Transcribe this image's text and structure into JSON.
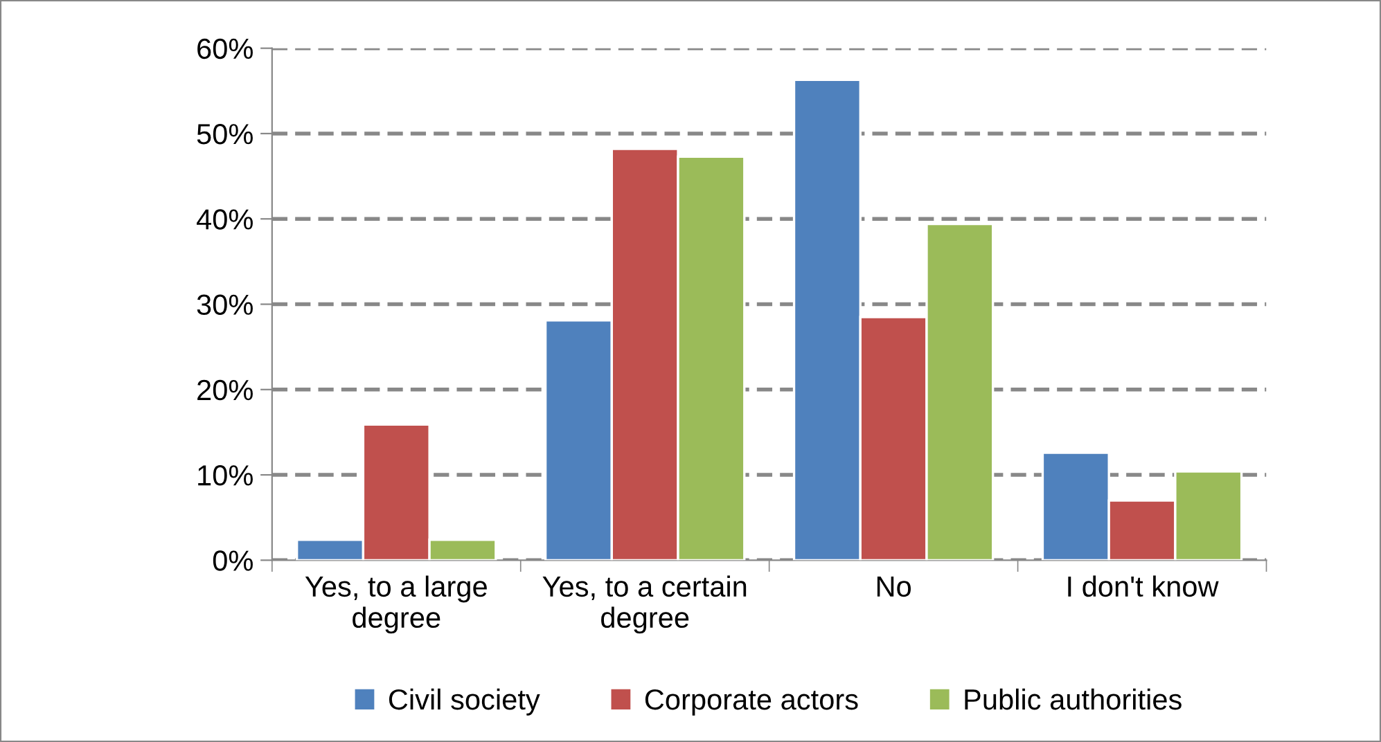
{
  "chart_data": {
    "type": "bar",
    "categories": [
      "Yes, to a large\ndegree",
      "Yes, to a certain\ndegree",
      "No",
      "I don't know"
    ],
    "series": [
      {
        "name": "Civil society",
        "color": "#4f81bd",
        "values": [
          2.4,
          28.1,
          56.3,
          12.6
        ]
      },
      {
        "name": "Corporate actors",
        "color": "#c0504d",
        "values": [
          15.9,
          48.2,
          28.5,
          7.0
        ]
      },
      {
        "name": "Public authorities",
        "color": "#9bbb59",
        "values": [
          2.4,
          47.3,
          39.4,
          10.4
        ]
      }
    ],
    "ylim": [
      0,
      60
    ],
    "yticks": [
      {
        "value": 0,
        "label": "0%"
      },
      {
        "value": 10,
        "label": "10%"
      },
      {
        "value": 20,
        "label": "20%"
      },
      {
        "value": 30,
        "label": "30%"
      },
      {
        "value": 40,
        "label": "40%"
      },
      {
        "value": 50,
        "label": "50%"
      },
      {
        "value": 60,
        "label": "60%"
      }
    ],
    "grid": "y",
    "legend": "bottom"
  }
}
